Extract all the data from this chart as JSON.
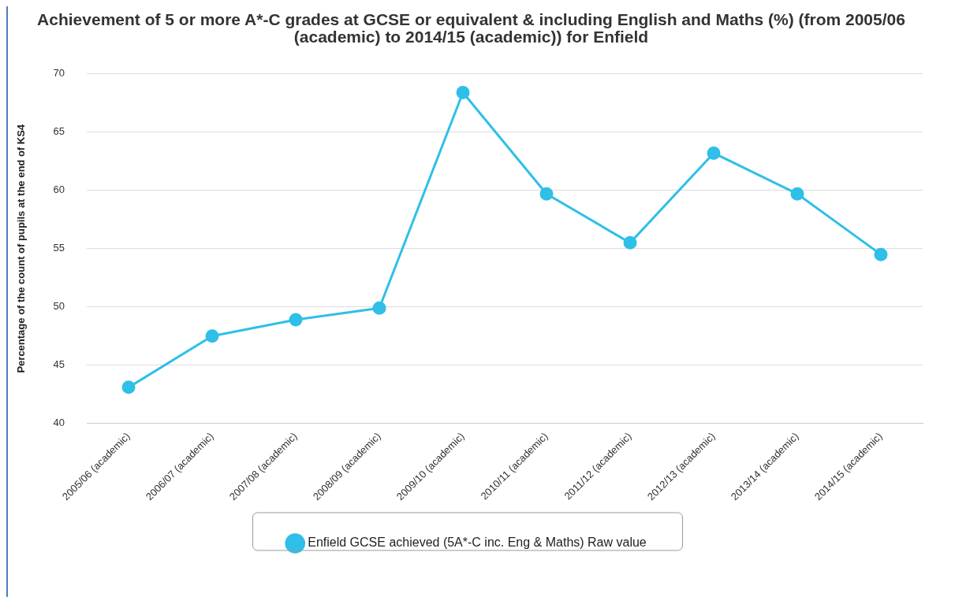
{
  "chart_data": {
    "type": "line",
    "title": "Achievement of 5 or more A*-C grades at GCSE or equivalent & including English and Maths (%) (from 2005/06 (academic) to 2014/15 (academic)) for Enfield",
    "ylabel": "Percentage of the count of pupils at the end of KS4",
    "categories": [
      "2005/06 (academic)",
      "2006/07 (academic)",
      "2007/08 (academic)",
      "2008/09 (academic)",
      "2009/10 (academic)",
      "2010/11 (academic)",
      "2011/12 (academic)",
      "2012/13 (academic)",
      "2013/14 (academic)",
      "2014/15 (academic)"
    ],
    "series": [
      {
        "name": "Enfield GCSE achieved (5A*-C inc. Eng & Maths) Raw value",
        "color": "#2fbfe8",
        "values": [
          43.1,
          47.5,
          48.9,
          49.9,
          68.4,
          59.7,
          55.5,
          63.2,
          59.7,
          54.5
        ]
      }
    ],
    "ylim": [
      40,
      70
    ],
    "yticks": [
      40,
      45,
      50,
      55,
      60,
      65,
      70
    ],
    "grid": "y",
    "legend": "bottom",
    "marker": "circle",
    "line_style": "solid"
  }
}
